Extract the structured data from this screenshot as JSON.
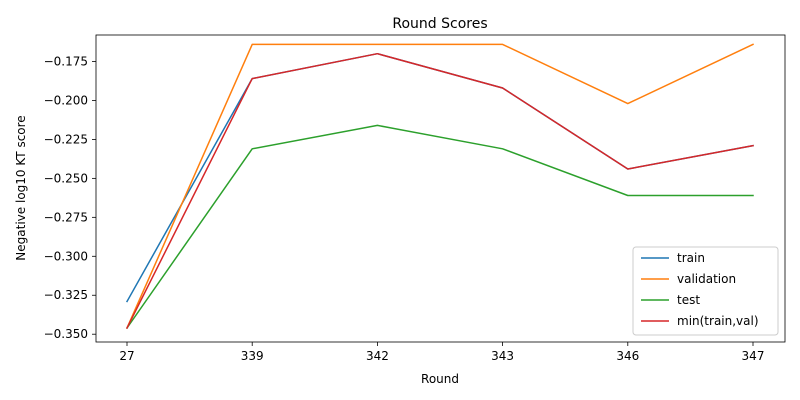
{
  "chart_data": {
    "type": "line",
    "title": "Round Scores",
    "xlabel": "Round",
    "ylabel": "Negative log10 KT score",
    "categories": [
      "27",
      "339",
      "342",
      "343",
      "346",
      "347"
    ],
    "ylim": [
      -0.355,
      -0.158
    ],
    "yticks": [
      -0.35,
      -0.325,
      -0.3,
      -0.275,
      -0.25,
      -0.225,
      -0.2,
      -0.175
    ],
    "ytick_labels": [
      "−0.350",
      "−0.325",
      "−0.300",
      "−0.275",
      "−0.250",
      "−0.225",
      "−0.200",
      "−0.175"
    ],
    "grid": false,
    "legend_position": "bottom-right",
    "series": [
      {
        "name": "train",
        "color": "#1f77b4",
        "values": [
          -0.329,
          -0.186,
          -0.17,
          -0.192,
          -0.244,
          -0.229
        ]
      },
      {
        "name": "validation",
        "color": "#ff7f0e",
        "values": [
          -0.346,
          -0.164,
          -0.164,
          -0.164,
          -0.202,
          -0.164
        ]
      },
      {
        "name": "test",
        "color": "#2ca02c",
        "values": [
          -0.346,
          -0.231,
          -0.216,
          -0.231,
          -0.261,
          -0.261
        ]
      },
      {
        "name": "min(train,val)",
        "color": "#d62728",
        "values": [
          -0.346,
          -0.186,
          -0.17,
          -0.192,
          -0.244,
          -0.229
        ]
      }
    ]
  }
}
